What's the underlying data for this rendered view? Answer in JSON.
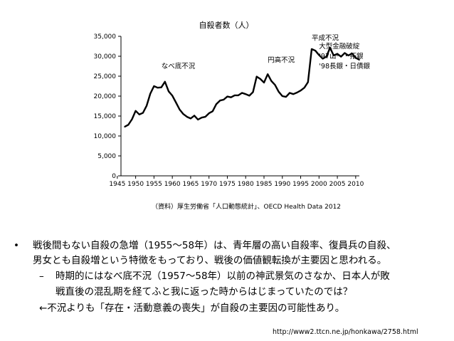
{
  "chart_data": {
    "type": "line",
    "title": "自殺者数（人）",
    "source": "（資料）厚生労働省「人口動態統計」、OECD Health Data 2012",
    "ylim": [
      0,
      35000
    ],
    "xlim": [
      1946,
      2011
    ],
    "y_ticks": [
      "0",
      "5,000",
      "10,000",
      "15,000",
      "20,000",
      "25,000",
      "30,000",
      "35,000"
    ],
    "x_ticks": [
      "1945",
      "1950",
      "1955",
      "1960",
      "1965",
      "1970",
      "1975",
      "1980",
      "1985",
      "1990",
      "1995",
      "2000",
      "2005",
      "2010"
    ],
    "grid": false,
    "series": [
      {
        "x": [
          1947,
          1948,
          1949,
          1950,
          1951,
          1952,
          1953,
          1954,
          1955,
          1956,
          1957,
          1958,
          1959,
          1960,
          1961,
          1962,
          1963,
          1964,
          1965,
          1966,
          1967,
          1968,
          1969,
          1970,
          1971,
          1972,
          1973,
          1974,
          1975,
          1976,
          1977,
          1978,
          1979,
          1980,
          1981,
          1982,
          1983,
          1984,
          1985,
          1986,
          1987,
          1988,
          1989,
          1990,
          1991,
          1992,
          1993,
          1994,
          1995,
          1996,
          1997,
          1998,
          1999,
          2000,
          2001,
          2002,
          2003,
          2004,
          2005,
          2006,
          2007,
          2008,
          2009,
          2010,
          2011
        ],
        "y": [
          12300,
          12800,
          14200,
          16300,
          15400,
          15800,
          17600,
          20600,
          22500,
          22100,
          22200,
          23600,
          21200,
          20100,
          18400,
          16600,
          15500,
          14800,
          14400,
          15100,
          14100,
          14600,
          14800,
          15700,
          16200,
          18000,
          18900,
          19100,
          19900,
          19700,
          20200,
          20200,
          20800,
          20500,
          20100,
          21000,
          24900,
          24300,
          23400,
          25500,
          23800,
          22800,
          21100,
          20000,
          19800,
          20800,
          20500,
          20900,
          21400,
          22100,
          23500,
          31800,
          31400,
          30300,
          29400,
          29900,
          32100,
          30200,
          30600,
          29900,
          30800,
          30200,
          30700,
          29600,
          29100
        ]
      }
    ],
    "annotations": [
      {
        "text": "なべ底不況",
        "x": 1957,
        "y": 27000
      },
      {
        "text": "円高不況",
        "x": 1986,
        "y": 28500
      },
      {
        "text": "平成不況",
        "x": 1998,
        "y": 34000
      },
      {
        "text": "大型金融破綻",
        "x": 2000,
        "y": 32000
      },
      {
        "text": "'97山一・拓銀",
        "x": 2000,
        "y": 29500
      },
      {
        "text": "'98長銀・日債銀",
        "x": 2000,
        "y": 27000
      }
    ]
  },
  "bullets": {
    "marker": "•",
    "line1": "戦後間もない自殺の急増（1955〜58年）は、青年層の高い自殺率、復員兵の自殺、",
    "line2": "男女とも自殺増という特徴をもっており、戦後の価値観転換が主要因と思われる。",
    "dash": "–",
    "line3": "時期的にはなべ底不況（1957〜58年）以前の神武景気のさなか、日本人が敗",
    "line4": "戦直後の混乱期を経てふと我に返った時からはじまっていたのでは？",
    "line5": "←不況よりも「存在・活動意義の喪失」が自殺の主要因の可能性あり。"
  },
  "url": "http://www2.ttcn.ne.jp/honkawa/2758.html"
}
